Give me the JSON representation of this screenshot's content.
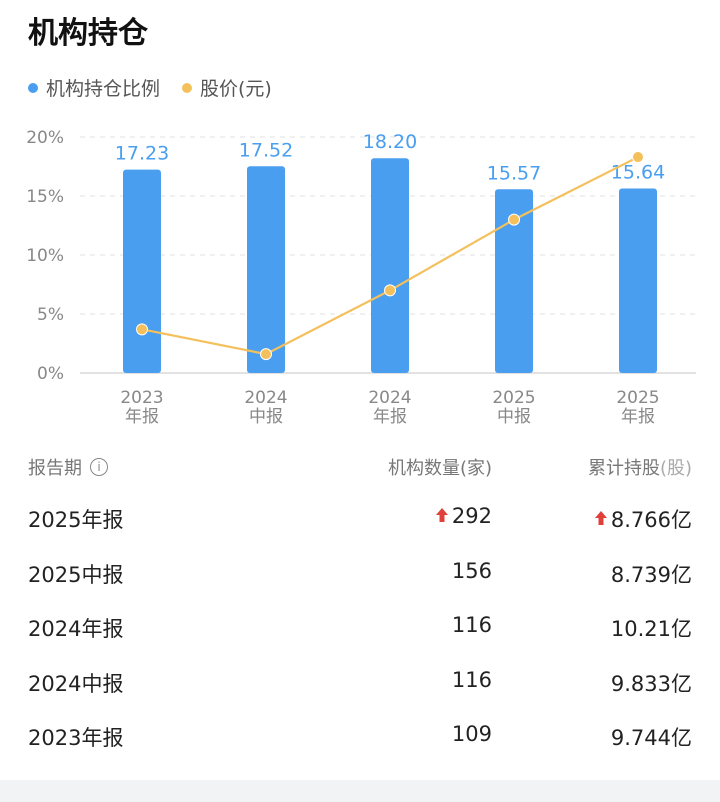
{
  "title": "机构持仓",
  "legend": {
    "ratio_label": "机构持仓比例",
    "price_label": "股价(元)"
  },
  "colors": {
    "bar": "#4a9ef0",
    "bar_label": "#4a9ef0",
    "line": "#f3c05c",
    "up_arrow": "#e0403a"
  },
  "chart_data": {
    "type": "bar",
    "categories": [
      [
        "2023",
        "年报"
      ],
      [
        "2024",
        "中报"
      ],
      [
        "2024",
        "年报"
      ],
      [
        "2025",
        "中报"
      ],
      [
        "2025",
        "年报"
      ]
    ],
    "ylim": [
      0,
      20
    ],
    "yticks": [
      "0%",
      "5%",
      "10%",
      "15%",
      "20%"
    ],
    "grid": true,
    "series": [
      {
        "name": "机构持仓比例",
        "type": "bar",
        "values": [
          17.23,
          17.52,
          18.2,
          15.57,
          15.64
        ],
        "labels": [
          "17.23",
          "17.52",
          "18.20",
          "15.57",
          "15.64"
        ]
      },
      {
        "name": "股价(元)",
        "type": "line",
        "values": [
          3.7,
          1.6,
          7.0,
          13.0,
          18.3
        ]
      }
    ]
  },
  "table": {
    "headers": {
      "period": "报告期",
      "count_main": "机构数量(家)",
      "shares_main": "累计持股",
      "shares_unit": "(股)"
    },
    "rows": [
      {
        "period": "2025年报",
        "count": "292",
        "count_up": true,
        "shares": "8.766亿",
        "shares_up": true
      },
      {
        "period": "2025中报",
        "count": "156",
        "count_up": false,
        "shares": "8.739亿",
        "shares_up": false
      },
      {
        "period": "2024年报",
        "count": "116",
        "count_up": false,
        "shares": "10.21亿",
        "shares_up": false
      },
      {
        "period": "2024中报",
        "count": "116",
        "count_up": false,
        "shares": "9.833亿",
        "shares_up": false
      },
      {
        "period": "2023年报",
        "count": "109",
        "count_up": false,
        "shares": "9.744亿",
        "shares_up": false
      }
    ]
  }
}
